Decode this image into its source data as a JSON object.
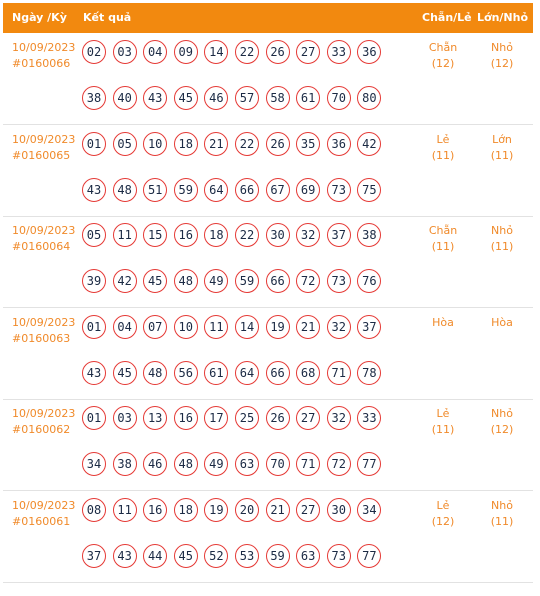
{
  "header": {
    "date_label": "Ngày /Kỳ",
    "result_label": "Kết quả",
    "chanle_label": "Chẵn/Lẻ",
    "lonnho_label": "Lớn/Nhỏ"
  },
  "rows": [
    {
      "date": "10/09/2023",
      "ky": "#0160066",
      "line1": [
        "02",
        "03",
        "04",
        "09",
        "14",
        "22",
        "26",
        "27",
        "33",
        "36"
      ],
      "line2": [
        "38",
        "40",
        "43",
        "45",
        "46",
        "57",
        "58",
        "61",
        "70",
        "80"
      ],
      "chanle": "Chẵn",
      "chanle_count": "(12)",
      "lonnho": "Nhỏ",
      "lonnho_count": "(12)"
    },
    {
      "date": "10/09/2023",
      "ky": "#0160065",
      "line1": [
        "01",
        "05",
        "10",
        "18",
        "21",
        "22",
        "26",
        "35",
        "36",
        "42"
      ],
      "line2": [
        "43",
        "48",
        "51",
        "59",
        "64",
        "66",
        "67",
        "69",
        "73",
        "75"
      ],
      "chanle": "Lẻ",
      "chanle_count": "(11)",
      "lonnho": "Lớn",
      "lonnho_count": "(11)"
    },
    {
      "date": "10/09/2023",
      "ky": "#0160064",
      "line1": [
        "05",
        "11",
        "15",
        "16",
        "18",
        "22",
        "30",
        "32",
        "37",
        "38"
      ],
      "line2": [
        "39",
        "42",
        "45",
        "48",
        "49",
        "59",
        "66",
        "72",
        "73",
        "76"
      ],
      "chanle": "Chẵn",
      "chanle_count": "(11)",
      "lonnho": "Nhỏ",
      "lonnho_count": "(11)"
    },
    {
      "date": "10/09/2023",
      "ky": "#0160063",
      "line1": [
        "01",
        "04",
        "07",
        "10",
        "11",
        "14",
        "19",
        "21",
        "32",
        "37"
      ],
      "line2": [
        "43",
        "45",
        "48",
        "56",
        "61",
        "64",
        "66",
        "68",
        "71",
        "78"
      ],
      "chanle": "Hòa",
      "chanle_count": "",
      "lonnho": "Hòa",
      "lonnho_count": ""
    },
    {
      "date": "10/09/2023",
      "ky": "#0160062",
      "line1": [
        "01",
        "03",
        "13",
        "16",
        "17",
        "25",
        "26",
        "27",
        "32",
        "33"
      ],
      "line2": [
        "34",
        "38",
        "46",
        "48",
        "49",
        "63",
        "70",
        "71",
        "72",
        "77"
      ],
      "chanle": "Lẻ",
      "chanle_count": "(11)",
      "lonnho": "Nhỏ",
      "lonnho_count": "(12)"
    },
    {
      "date": "10/09/2023",
      "ky": "#0160061",
      "line1": [
        "08",
        "11",
        "16",
        "18",
        "19",
        "20",
        "21",
        "27",
        "30",
        "34"
      ],
      "line2": [
        "37",
        "43",
        "44",
        "45",
        "52",
        "53",
        "59",
        "63",
        "73",
        "77"
      ],
      "chanle": "Lẻ",
      "chanle_count": "(12)",
      "lonnho": "Nhỏ",
      "lonnho_count": "(11)"
    }
  ]
}
